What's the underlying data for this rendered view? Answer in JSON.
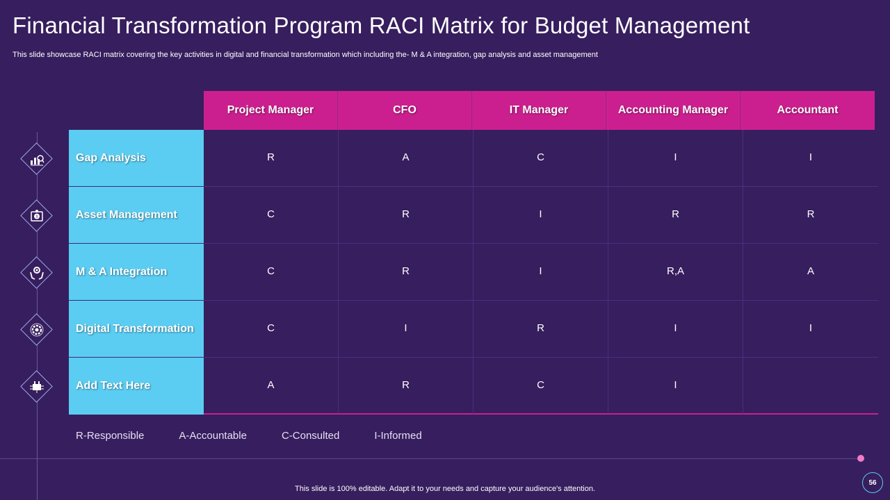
{
  "title": "Financial Transformation Program RACI Matrix for Budget Management",
  "subtitle": "This slide showcase RACI matrix covering the key activities in digital and financial transformation which including the- M & A  integration, gap analysis and asset management",
  "matrix": {
    "columns": [
      "Project Manager",
      "CFO",
      "IT Manager",
      "Accounting Manager",
      "Accountant"
    ],
    "rows": [
      {
        "label": "Gap Analysis",
        "icon": "analysis-chart-icon",
        "values": [
          "R",
          "A",
          "C",
          "I",
          "I"
        ]
      },
      {
        "label": "Asset Management",
        "icon": "money-gear-icon",
        "values": [
          "C",
          "R",
          "I",
          "R",
          "R"
        ]
      },
      {
        "label": "M & A Integration",
        "icon": "hands-gear-icon",
        "values": [
          "C",
          "R",
          "I",
          "R,A",
          "A"
        ]
      },
      {
        "label": "Digital Transformation",
        "icon": "digital-gear-icon",
        "values": [
          "C",
          "I",
          "R",
          "I",
          "I"
        ]
      },
      {
        "label": "Add Text Here",
        "icon": "factory-circuit-icon",
        "values": [
          "A",
          "R",
          "C",
          "I",
          ""
        ]
      }
    ]
  },
  "legend": [
    "R-Responsible",
    "A-Accountable",
    "C-Consulted",
    "I-Informed"
  ],
  "footer": "This slide is 100% editable. Adapt it to your needs and capture your audience's attention.",
  "page_number": "56",
  "colors": {
    "background": "#371e5e",
    "header": "#cc1f8f",
    "row_label": "#5bcdf2",
    "accent_dot": "#f07ac6"
  }
}
